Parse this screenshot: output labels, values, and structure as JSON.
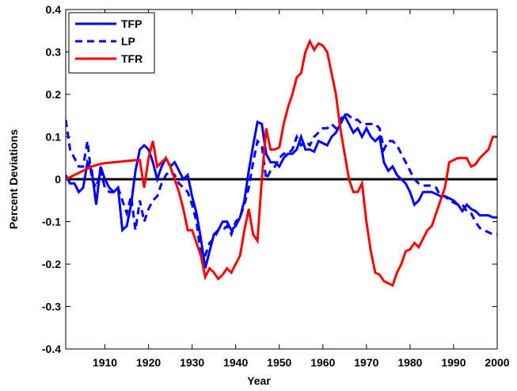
{
  "chart_data": {
    "type": "line",
    "xlabel": "Year",
    "ylabel": "Percent Deviations",
    "x": [
      1901,
      1902,
      1903,
      1904,
      1905,
      1906,
      1907,
      1908,
      1909,
      1910,
      1911,
      1912,
      1913,
      1914,
      1915,
      1916,
      1917,
      1918,
      1919,
      1920,
      1921,
      1922,
      1923,
      1924,
      1925,
      1926,
      1927,
      1928,
      1929,
      1930,
      1931,
      1932,
      1933,
      1934,
      1935,
      1936,
      1937,
      1938,
      1939,
      1940,
      1941,
      1942,
      1943,
      1944,
      1945,
      1946,
      1947,
      1948,
      1949,
      1950,
      1951,
      1952,
      1953,
      1954,
      1955,
      1956,
      1957,
      1958,
      1959,
      1960,
      1961,
      1962,
      1963,
      1964,
      1965,
      1966,
      1967,
      1968,
      1969,
      1970,
      1971,
      1972,
      1973,
      1974,
      1975,
      1976,
      1977,
      1978,
      1979,
      1980,
      1981,
      1982,
      1983,
      1984,
      1985,
      1986,
      1987,
      1988,
      1989,
      1990,
      1991,
      1992,
      1993,
      1994,
      1995,
      1996,
      1997,
      1998,
      1999,
      2000
    ],
    "series": [
      {
        "name": "TFP",
        "color": "#0000ff",
        "dash": false,
        "values": [
          0.01,
          -0.01,
          -0.01,
          -0.03,
          -0.02,
          0.04,
          0.02,
          -0.06,
          0.03,
          0.0,
          -0.02,
          -0.03,
          -0.02,
          -0.12,
          -0.11,
          -0.06,
          0.02,
          0.07,
          0.08,
          0.07,
          0.04,
          0.0,
          0.03,
          0.05,
          0.03,
          0.04,
          0.02,
          0.0,
          0.01,
          -0.04,
          -0.08,
          -0.14,
          -0.21,
          -0.17,
          -0.13,
          -0.12,
          -0.1,
          -0.1,
          -0.12,
          -0.11,
          -0.09,
          -0.05,
          0.02,
          0.08,
          0.135,
          0.13,
          0.06,
          0.04,
          0.04,
          0.03,
          0.05,
          0.06,
          0.06,
          0.07,
          0.1,
          0.07,
          0.07,
          0.065,
          0.09,
          0.085,
          0.08,
          0.1,
          0.11,
          0.13,
          0.15,
          0.13,
          0.11,
          0.12,
          0.1,
          0.12,
          0.1,
          0.09,
          0.1,
          0.04,
          0.02,
          0.03,
          0.01,
          0.0,
          -0.01,
          -0.03,
          -0.06,
          -0.05,
          -0.03,
          -0.03,
          -0.03,
          -0.035,
          -0.04,
          -0.04,
          -0.045,
          -0.05,
          -0.06,
          -0.075,
          -0.06,
          -0.07,
          -0.075,
          -0.085,
          -0.085,
          -0.085,
          -0.09,
          -0.09
        ]
      },
      {
        "name": "LP",
        "color": "#0000ff",
        "dash": true,
        "values": [
          0.14,
          0.07,
          0.05,
          0.03,
          0.03,
          0.09,
          0.0,
          -0.02,
          0.02,
          -0.02,
          -0.03,
          -0.03,
          -0.02,
          -0.05,
          -0.08,
          -0.04,
          -0.12,
          -0.05,
          -0.1,
          -0.07,
          -0.05,
          -0.04,
          -0.01,
          0.01,
          0.02,
          0.01,
          -0.01,
          -0.02,
          -0.03,
          -0.06,
          -0.1,
          -0.18,
          -0.18,
          -0.15,
          -0.14,
          -0.12,
          -0.12,
          -0.11,
          -0.13,
          -0.1,
          -0.09,
          -0.06,
          -0.02,
          0.04,
          0.09,
          0.08,
          0.0,
          0.02,
          0.03,
          0.05,
          0.06,
          0.06,
          0.07,
          0.1,
          0.08,
          0.09,
          0.08,
          0.1,
          0.11,
          0.12,
          0.12,
          0.13,
          0.12,
          0.14,
          0.155,
          0.15,
          0.14,
          0.14,
          0.13,
          0.13,
          0.13,
          0.13,
          0.12,
          0.07,
          0.09,
          0.09,
          0.08,
          0.06,
          0.04,
          0.02,
          0.0,
          -0.01,
          -0.015,
          -0.015,
          -0.015,
          -0.02,
          -0.04,
          -0.04,
          -0.05,
          -0.055,
          -0.06,
          -0.06,
          -0.075,
          -0.08,
          -0.1,
          -0.115,
          -0.12,
          -0.125,
          -0.13,
          -0.13
        ]
      },
      {
        "name": "TFR",
        "color": "#ff0000",
        "dash": false,
        "values": [
          0.0,
          0.005,
          0.01,
          0.015,
          0.02,
          0.025,
          0.03,
          0.033,
          0.036,
          0.038,
          0.039,
          0.04,
          0.041,
          0.042,
          0.043,
          0.044,
          0.045,
          0.045,
          -0.02,
          0.05,
          0.09,
          0.03,
          0.04,
          0.05,
          0.03,
          0.0,
          -0.03,
          -0.07,
          -0.12,
          -0.12,
          -0.15,
          -0.18,
          -0.23,
          -0.21,
          -0.22,
          -0.235,
          -0.225,
          -0.21,
          -0.22,
          -0.2,
          -0.18,
          -0.12,
          -0.07,
          -0.13,
          -0.145,
          0.0,
          0.12,
          0.07,
          0.07,
          0.075,
          0.13,
          0.17,
          0.2,
          0.24,
          0.25,
          0.3,
          0.325,
          0.305,
          0.32,
          0.315,
          0.3,
          0.25,
          0.2,
          0.12,
          0.06,
          0.0,
          -0.03,
          -0.03,
          -0.01,
          -0.1,
          -0.17,
          -0.22,
          -0.225,
          -0.24,
          -0.245,
          -0.25,
          -0.22,
          -0.2,
          -0.17,
          -0.165,
          -0.15,
          -0.16,
          -0.14,
          -0.12,
          -0.11,
          -0.08,
          -0.05,
          -0.02,
          0.04,
          0.045,
          0.05,
          0.05,
          0.05,
          0.03,
          0.035,
          0.05,
          0.06,
          0.07,
          0.1,
          0.1
        ]
      }
    ],
    "xlim": [
      1901,
      2000
    ],
    "xticks": [
      1910,
      1920,
      1930,
      1940,
      1950,
      1960,
      1970,
      1980,
      1990,
      2000
    ],
    "ylim": [
      -0.4,
      0.4
    ],
    "yticks": [
      -0.4,
      -0.3,
      -0.2,
      -0.1,
      0,
      0.1,
      0.2,
      0.3,
      0.4
    ],
    "zero_line": true,
    "legend": "upper left"
  }
}
